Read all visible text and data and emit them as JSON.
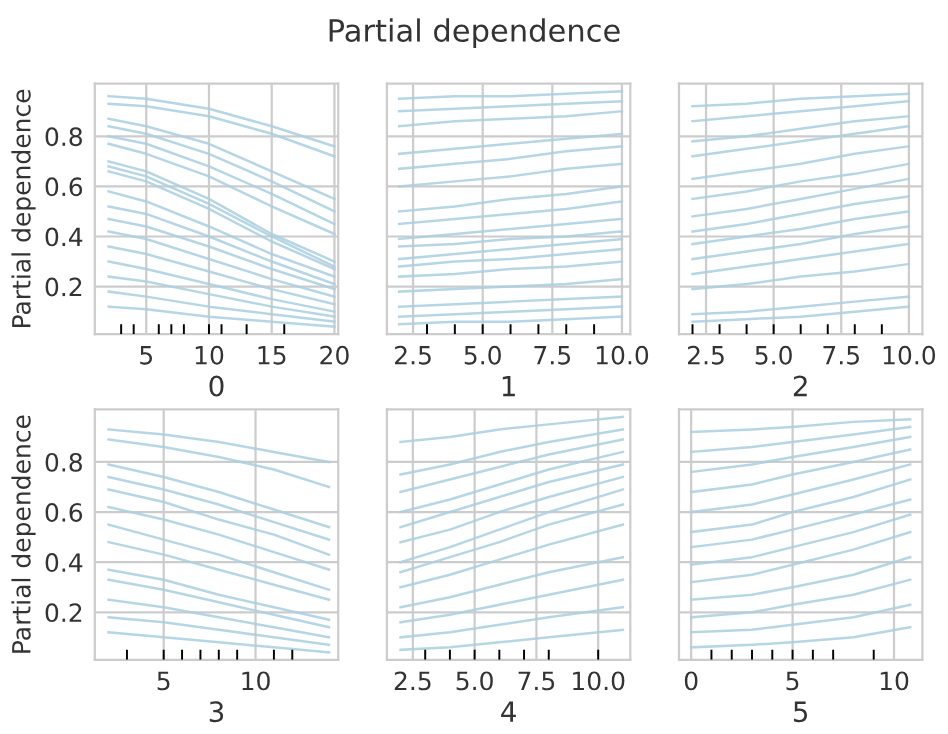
{
  "chart_data": [
    {
      "type": "line",
      "xlabel": "0",
      "ylabel": "Partial dependence",
      "x": [
        2,
        5,
        10,
        15,
        20
      ],
      "xlim": [
        0.9,
        20.3
      ],
      "xticks": [
        5,
        10,
        15,
        20
      ],
      "ylim": [
        0.01,
        1.01
      ],
      "yticks": [
        0.2,
        0.4,
        0.6,
        0.8
      ],
      "grid": true,
      "line_style": "solid",
      "series": [
        {
          "color": "#a9cfe0",
          "values": [
            0.96,
            0.95,
            0.91,
            0.84,
            0.76
          ]
        },
        {
          "color": "#a9cfe0",
          "values": [
            0.93,
            0.92,
            0.88,
            0.81,
            0.72
          ]
        },
        {
          "color": "#a9cfe0",
          "values": [
            0.87,
            0.84,
            0.77,
            0.66,
            0.55
          ]
        },
        {
          "color": "#a9cfe0",
          "values": [
            0.84,
            0.81,
            0.73,
            0.62,
            0.5
          ]
        },
        {
          "color": "#a9cfe0",
          "values": [
            0.8,
            0.77,
            0.68,
            0.57,
            0.45
          ]
        },
        {
          "color": "#a9cfe0",
          "values": [
            0.77,
            0.73,
            0.64,
            0.52,
            0.41
          ]
        },
        {
          "color": "#a9cfe0",
          "values": [
            0.7,
            0.66,
            0.55,
            0.41,
            0.3
          ]
        },
        {
          "color": "#a9cfe0",
          "values": [
            0.68,
            0.64,
            0.53,
            0.4,
            0.28
          ]
        },
        {
          "color": "#a9cfe0",
          "values": [
            0.66,
            0.62,
            0.51,
            0.38,
            0.27
          ]
        },
        {
          "color": "#a9cfe0",
          "values": [
            0.58,
            0.54,
            0.44,
            0.33,
            0.24
          ]
        },
        {
          "color": "#a9cfe0",
          "values": [
            0.52,
            0.49,
            0.4,
            0.3,
            0.21
          ]
        },
        {
          "color": "#a9cfe0",
          "values": [
            0.47,
            0.44,
            0.36,
            0.27,
            0.19
          ]
        },
        {
          "color": "#a9cfe0",
          "values": [
            0.42,
            0.39,
            0.31,
            0.23,
            0.16
          ]
        },
        {
          "color": "#a9cfe0",
          "values": [
            0.36,
            0.33,
            0.26,
            0.19,
            0.13
          ]
        },
        {
          "color": "#a9cfe0",
          "values": [
            0.3,
            0.27,
            0.21,
            0.15,
            0.1
          ]
        },
        {
          "color": "#a9cfe0",
          "values": [
            0.24,
            0.22,
            0.17,
            0.12,
            0.08
          ]
        },
        {
          "color": "#a9cfe0",
          "values": [
            0.18,
            0.16,
            0.12,
            0.09,
            0.06
          ]
        },
        {
          "color": "#a9cfe0",
          "values": [
            0.12,
            0.11,
            0.08,
            0.06,
            0.04
          ]
        },
        {
          "type": "bar",
          "color": "#000000",
          "x": [
            3,
            4,
            6,
            7,
            8,
            10,
            11,
            13,
            16
          ],
          "base": [
            0.01,
            0.01,
            0.01,
            0.01,
            0.01,
            0.01,
            0.01,
            0.01,
            0.01
          ],
          "values": [
            0.04,
            0.04,
            0.04,
            0.04,
            0.04,
            0.04,
            0.04,
            0.04,
            0.04
          ]
        }
      ]
    },
    {
      "type": "line",
      "title": "Partial dependence",
      "xlabel": "1",
      "x": [
        2,
        4,
        6,
        8,
        10
      ],
      "xlim": [
        1.56,
        10.3
      ],
      "xticks": [
        {
          "value": 2.5,
          "label": "2.5"
        },
        {
          "value": 5,
          "label": "5.0"
        },
        {
          "value": 7.5,
          "label": "7.5"
        },
        {
          "value": 10,
          "label": "10.0"
        }
      ],
      "ylim": [
        0.01,
        1.01
      ],
      "yticks": [
        {
          "value": 0.2,
          "label": null
        },
        {
          "value": 0.4,
          "label": null
        },
        {
          "value": 0.6,
          "label": null
        },
        {
          "value": 0.8,
          "label": null
        }
      ],
      "tick_labels": "x",
      "grid": true,
      "line_style": "solid",
      "series": [
        {
          "color": "#a9cfe0",
          "values": [
            0.95,
            0.96,
            0.96,
            0.97,
            0.98
          ]
        },
        {
          "color": "#a9cfe0",
          "values": [
            0.9,
            0.91,
            0.92,
            0.93,
            0.94
          ]
        },
        {
          "color": "#a9cfe0",
          "values": [
            0.84,
            0.86,
            0.87,
            0.88,
            0.9
          ]
        },
        {
          "color": "#a9cfe0",
          "values": [
            0.73,
            0.75,
            0.77,
            0.79,
            0.81
          ]
        },
        {
          "color": "#a9cfe0",
          "values": [
            0.67,
            0.69,
            0.71,
            0.74,
            0.76
          ]
        },
        {
          "color": "#a9cfe0",
          "values": [
            0.6,
            0.62,
            0.64,
            0.67,
            0.69
          ]
        },
        {
          "color": "#a9cfe0",
          "values": [
            0.5,
            0.52,
            0.55,
            0.57,
            0.6
          ]
        },
        {
          "color": "#a9cfe0",
          "values": [
            0.45,
            0.47,
            0.49,
            0.51,
            0.54
          ]
        },
        {
          "color": "#a9cfe0",
          "values": [
            0.39,
            0.41,
            0.43,
            0.45,
            0.47
          ]
        },
        {
          "color": "#a9cfe0",
          "values": [
            0.36,
            0.37,
            0.39,
            0.4,
            0.42
          ]
        },
        {
          "color": "#a9cfe0",
          "values": [
            0.31,
            0.33,
            0.35,
            0.37,
            0.39
          ]
        },
        {
          "color": "#a9cfe0",
          "values": [
            0.28,
            0.3,
            0.31,
            0.33,
            0.35
          ]
        },
        {
          "color": "#a9cfe0",
          "values": [
            0.24,
            0.25,
            0.27,
            0.28,
            0.3
          ]
        },
        {
          "color": "#a9cfe0",
          "values": [
            0.18,
            0.19,
            0.2,
            0.21,
            0.23
          ]
        },
        {
          "color": "#a9cfe0",
          "values": [
            0.12,
            0.13,
            0.14,
            0.15,
            0.16
          ]
        },
        {
          "color": "#a9cfe0",
          "values": [
            0.08,
            0.09,
            0.1,
            0.11,
            0.12
          ]
        },
        {
          "color": "#a9cfe0",
          "values": [
            0.05,
            0.06,
            0.06,
            0.07,
            0.08
          ]
        },
        {
          "type": "bar",
          "color": "#000000",
          "x": [
            3,
            4,
            5,
            6,
            7,
            8,
            9
          ],
          "base": [
            0.01,
            0.01,
            0.01,
            0.01,
            0.01,
            0.01,
            0.01
          ],
          "values": [
            0.04,
            0.04,
            0.04,
            0.04,
            0.04,
            0.04,
            0.04
          ]
        }
      ]
    },
    {
      "type": "line",
      "xlabel": "2",
      "x": [
        2,
        4,
        6,
        8,
        10
      ],
      "xlim": [
        1.5,
        10.5
      ],
      "xticks": [
        {
          "value": 2.5,
          "label": "2.5"
        },
        {
          "value": 5,
          "label": "5.0"
        },
        {
          "value": 7.5,
          "label": "7.5"
        },
        {
          "value": 10,
          "label": "10.0"
        }
      ],
      "ylim": [
        0.01,
        1.01
      ],
      "yticks": [
        {
          "value": 0.2,
          "label": null
        },
        {
          "value": 0.4,
          "label": null
        },
        {
          "value": 0.6,
          "label": null
        },
        {
          "value": 0.8,
          "label": null
        }
      ],
      "tick_labels": "x",
      "grid": true,
      "line_style": "solid",
      "series": [
        {
          "color": "#a9cfe0",
          "values": [
            0.92,
            0.93,
            0.95,
            0.96,
            0.97
          ]
        },
        {
          "color": "#a9cfe0",
          "values": [
            0.86,
            0.88,
            0.9,
            0.92,
            0.94
          ]
        },
        {
          "color": "#a9cfe0",
          "values": [
            0.78,
            0.8,
            0.83,
            0.86,
            0.88
          ]
        },
        {
          "color": "#a9cfe0",
          "values": [
            0.72,
            0.75,
            0.78,
            0.81,
            0.84
          ]
        },
        {
          "color": "#a9cfe0",
          "values": [
            0.63,
            0.66,
            0.69,
            0.73,
            0.76
          ]
        },
        {
          "color": "#a9cfe0",
          "values": [
            0.55,
            0.58,
            0.62,
            0.65,
            0.69
          ]
        },
        {
          "color": "#a9cfe0",
          "values": [
            0.48,
            0.51,
            0.55,
            0.59,
            0.63
          ]
        },
        {
          "color": "#a9cfe0",
          "values": [
            0.42,
            0.45,
            0.49,
            0.53,
            0.56
          ]
        },
        {
          "color": "#a9cfe0",
          "values": [
            0.37,
            0.4,
            0.43,
            0.47,
            0.5
          ]
        },
        {
          "color": "#a9cfe0",
          "values": [
            0.31,
            0.34,
            0.37,
            0.41,
            0.44
          ]
        },
        {
          "color": "#a9cfe0",
          "values": [
            0.25,
            0.28,
            0.31,
            0.34,
            0.37
          ]
        },
        {
          "color": "#a9cfe0",
          "values": [
            0.19,
            0.21,
            0.24,
            0.26,
            0.29
          ]
        },
        {
          "color": "#a9cfe0",
          "values": [
            0.09,
            0.1,
            0.12,
            0.14,
            0.16
          ]
        },
        {
          "color": "#a9cfe0",
          "values": [
            0.06,
            0.07,
            0.08,
            0.1,
            0.12
          ]
        },
        {
          "type": "bar",
          "color": "#000000",
          "x": [
            2,
            3,
            4,
            5,
            6,
            7,
            8,
            9
          ],
          "base": [
            0.01,
            0.01,
            0.01,
            0.01,
            0.01,
            0.01,
            0.01,
            0.01
          ],
          "values": [
            0.04,
            0.04,
            0.04,
            0.04,
            0.04,
            0.04,
            0.04,
            0.04
          ]
        }
      ]
    },
    {
      "type": "line",
      "xlabel": "3",
      "ylabel": "Partial dependence",
      "x": [
        2,
        5,
        8,
        11,
        14
      ],
      "xlim": [
        1.25,
        14.5
      ],
      "xticks": [
        5,
        10
      ],
      "ylim": [
        0.01,
        1.01
      ],
      "yticks": [
        0.2,
        0.4,
        0.6,
        0.8
      ],
      "grid": true,
      "line_style": "solid",
      "series": [
        {
          "color": "#a9cfe0",
          "values": [
            0.93,
            0.91,
            0.88,
            0.84,
            0.8
          ]
        },
        {
          "color": "#a9cfe0",
          "values": [
            0.89,
            0.86,
            0.82,
            0.77,
            0.7
          ]
        },
        {
          "color": "#a9cfe0",
          "values": [
            0.79,
            0.74,
            0.68,
            0.61,
            0.54
          ]
        },
        {
          "color": "#a9cfe0",
          "values": [
            0.74,
            0.69,
            0.63,
            0.56,
            0.49
          ]
        },
        {
          "color": "#a9cfe0",
          "values": [
            0.69,
            0.64,
            0.57,
            0.51,
            0.43
          ]
        },
        {
          "color": "#a9cfe0",
          "values": [
            0.62,
            0.57,
            0.51,
            0.44,
            0.37
          ]
        },
        {
          "color": "#a9cfe0",
          "values": [
            0.55,
            0.49,
            0.43,
            0.36,
            0.29
          ]
        },
        {
          "color": "#a9cfe0",
          "values": [
            0.48,
            0.43,
            0.37,
            0.31,
            0.25
          ]
        },
        {
          "color": "#a9cfe0",
          "values": [
            0.37,
            0.33,
            0.27,
            0.22,
            0.17
          ]
        },
        {
          "color": "#a9cfe0",
          "values": [
            0.33,
            0.29,
            0.24,
            0.19,
            0.14
          ]
        },
        {
          "color": "#a9cfe0",
          "values": [
            0.25,
            0.22,
            0.18,
            0.14,
            0.1
          ]
        },
        {
          "color": "#a9cfe0",
          "values": [
            0.18,
            0.16,
            0.13,
            0.1,
            0.07
          ]
        },
        {
          "color": "#a9cfe0",
          "values": [
            0.12,
            0.1,
            0.08,
            0.06,
            0.04
          ]
        },
        {
          "type": "bar",
          "color": "#000000",
          "x": [
            3,
            5,
            6,
            7,
            8,
            9,
            11,
            12
          ],
          "base": [
            0.01,
            0.01,
            0.01,
            0.01,
            0.01,
            0.01,
            0.01,
            0.01
          ],
          "values": [
            0.04,
            0.04,
            0.04,
            0.04,
            0.04,
            0.04,
            0.04,
            0.04
          ]
        }
      ]
    },
    {
      "type": "line",
      "xlabel": "4",
      "x": [
        2,
        4,
        6,
        8,
        11
      ],
      "xlim": [
        1.45,
        11.3
      ],
      "xticks": [
        {
          "value": 2.5,
          "label": "2.5"
        },
        {
          "value": 5,
          "label": "5.0"
        },
        {
          "value": 7.5,
          "label": "7.5"
        },
        {
          "value": 10,
          "label": "10.0"
        }
      ],
      "ylim": [
        0.01,
        1.01
      ],
      "yticks": [
        {
          "value": 0.2,
          "label": null
        },
        {
          "value": 0.4,
          "label": null
        },
        {
          "value": 0.6,
          "label": null
        },
        {
          "value": 0.8,
          "label": null
        }
      ],
      "tick_labels": "x",
      "grid": true,
      "line_style": "solid",
      "series": [
        {
          "color": "#a9cfe0",
          "values": [
            0.88,
            0.9,
            0.93,
            0.95,
            0.98
          ]
        },
        {
          "color": "#a9cfe0",
          "values": [
            0.75,
            0.79,
            0.84,
            0.88,
            0.93
          ]
        },
        {
          "color": "#a9cfe0",
          "values": [
            0.68,
            0.73,
            0.78,
            0.83,
            0.89
          ]
        },
        {
          "color": "#a9cfe0",
          "values": [
            0.6,
            0.65,
            0.71,
            0.77,
            0.84
          ]
        },
        {
          "color": "#a9cfe0",
          "values": [
            0.54,
            0.6,
            0.66,
            0.72,
            0.79
          ]
        },
        {
          "color": "#a9cfe0",
          "values": [
            0.48,
            0.53,
            0.6,
            0.66,
            0.74
          ]
        },
        {
          "color": "#a9cfe0",
          "values": [
            0.4,
            0.46,
            0.53,
            0.6,
            0.69
          ]
        },
        {
          "color": "#a9cfe0",
          "values": [
            0.36,
            0.42,
            0.48,
            0.55,
            0.63
          ]
        },
        {
          "color": "#a9cfe0",
          "values": [
            0.3,
            0.35,
            0.41,
            0.47,
            0.55
          ]
        },
        {
          "color": "#a9cfe0",
          "values": [
            0.22,
            0.26,
            0.31,
            0.36,
            0.42
          ]
        },
        {
          "color": "#a9cfe0",
          "values": [
            0.16,
            0.19,
            0.23,
            0.27,
            0.33
          ]
        },
        {
          "color": "#a9cfe0",
          "values": [
            0.1,
            0.12,
            0.15,
            0.18,
            0.22
          ]
        },
        {
          "color": "#a9cfe0",
          "values": [
            0.05,
            0.06,
            0.08,
            0.1,
            0.13
          ]
        },
        {
          "type": "bar",
          "color": "#000000",
          "x": [
            3,
            4,
            5,
            6,
            7,
            8,
            10
          ],
          "base": [
            0.01,
            0.01,
            0.01,
            0.01,
            0.01,
            0.01,
            0.01
          ],
          "values": [
            0.04,
            0.04,
            0.04,
            0.04,
            0.04,
            0.04,
            0.04
          ]
        }
      ]
    },
    {
      "type": "line",
      "xlabel": "5",
      "x": [
        0,
        3,
        5,
        8,
        10.8
      ],
      "xlim": [
        -0.6,
        11.4
      ],
      "xticks": [
        0,
        5,
        10
      ],
      "ylim": [
        0.01,
        1.01
      ],
      "yticks": [
        {
          "value": 0.2,
          "label": null
        },
        {
          "value": 0.4,
          "label": null
        },
        {
          "value": 0.6,
          "label": null
        },
        {
          "value": 0.8,
          "label": null
        }
      ],
      "tick_labels": "x",
      "grid": true,
      "line_style": "solid",
      "series": [
        {
          "color": "#a9cfe0",
          "values": [
            0.92,
            0.93,
            0.94,
            0.96,
            0.97
          ]
        },
        {
          "color": "#a9cfe0",
          "values": [
            0.84,
            0.86,
            0.88,
            0.91,
            0.94
          ]
        },
        {
          "color": "#a9cfe0",
          "values": [
            0.76,
            0.79,
            0.82,
            0.86,
            0.9
          ]
        },
        {
          "color": "#a9cfe0",
          "values": [
            0.68,
            0.71,
            0.75,
            0.8,
            0.85
          ]
        },
        {
          "color": "#a9cfe0",
          "values": [
            0.6,
            0.63,
            0.67,
            0.73,
            0.79
          ]
        },
        {
          "color": "#a9cfe0",
          "values": [
            0.52,
            0.55,
            0.6,
            0.66,
            0.73
          ]
        },
        {
          "color": "#a9cfe0",
          "values": [
            0.46,
            0.49,
            0.53,
            0.59,
            0.65
          ]
        },
        {
          "color": "#a9cfe0",
          "values": [
            0.39,
            0.42,
            0.46,
            0.52,
            0.59
          ]
        },
        {
          "color": "#a9cfe0",
          "values": [
            0.32,
            0.35,
            0.39,
            0.45,
            0.52
          ]
        },
        {
          "color": "#a9cfe0",
          "values": [
            0.25,
            0.27,
            0.3,
            0.35,
            0.42
          ]
        },
        {
          "color": "#a9cfe0",
          "values": [
            0.18,
            0.2,
            0.23,
            0.27,
            0.33
          ]
        },
        {
          "color": "#a9cfe0",
          "values": [
            0.12,
            0.13,
            0.15,
            0.18,
            0.23
          ]
        },
        {
          "color": "#a9cfe0",
          "values": [
            0.06,
            0.07,
            0.08,
            0.1,
            0.14
          ]
        },
        {
          "type": "bar",
          "color": "#000000",
          "x": [
            1,
            2,
            3,
            4,
            5,
            6,
            7,
            9
          ],
          "base": [
            0.01,
            0.01,
            0.01,
            0.01,
            0.01,
            0.01,
            0.01,
            0.01
          ],
          "values": [
            0.04,
            0.04,
            0.04,
            0.04,
            0.04,
            0.04,
            0.04,
            0.04
          ]
        }
      ]
    }
  ]
}
